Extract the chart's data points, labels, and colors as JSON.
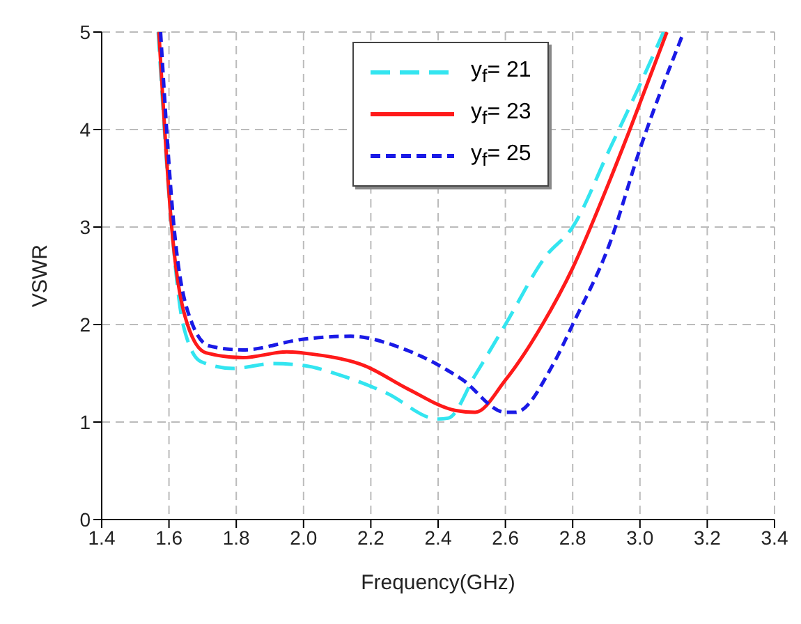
{
  "chart_data": {
    "type": "line",
    "xlabel": "Frequency(GHz)",
    "ylabel": "VSWR",
    "xlim": [
      1.4,
      3.4
    ],
    "ylim": [
      0,
      5
    ],
    "xticks": [
      {
        "value": 1.4,
        "label": "1.4"
      },
      {
        "value": 1.6,
        "label": "1.6"
      },
      {
        "value": 1.8,
        "label": "1.8"
      },
      {
        "value": 2.0,
        "label": "2.0"
      },
      {
        "value": 2.2,
        "label": "2.2"
      },
      {
        "value": 2.4,
        "label": "2.4"
      },
      {
        "value": 2.6,
        "label": "2.6"
      },
      {
        "value": 2.8,
        "label": "2.8"
      },
      {
        "value": 3.0,
        "label": "3.0"
      },
      {
        "value": 3.2,
        "label": "3.2"
      },
      {
        "value": 3.4,
        "label": "3.4"
      }
    ],
    "yticks": [
      0,
      1,
      2,
      3,
      4,
      5
    ],
    "grid": true,
    "legend": "top right",
    "marker": "none",
    "series": [
      {
        "name": "y$_{f}$= 21",
        "color": "#33e5f0",
        "line_style": "dashed",
        "x": [
          1.568,
          1.608,
          1.642,
          1.695,
          1.79,
          1.91,
          2.0,
          2.11,
          2.245,
          2.4,
          2.43,
          2.51,
          2.6,
          2.72,
          2.8,
          2.91,
          3.0,
          3.07
        ],
        "values": [
          5,
          3,
          2,
          1.62,
          1.55,
          1.6,
          1.58,
          1.48,
          1.3,
          1.03,
          1.04,
          1.48,
          2.0,
          2.7,
          3.0,
          3.8,
          4.46,
          5
        ]
      },
      {
        "name": "y$_{f}$= 23",
        "color": "#ff1a1a",
        "line_style": "solid",
        "x": [
          1.57,
          1.608,
          1.655,
          1.71,
          1.82,
          1.95,
          2.04,
          2.18,
          2.31,
          2.45,
          2.51,
          2.6,
          2.71,
          2.8,
          2.9,
          2.97,
          3.08
        ],
        "values": [
          5,
          3,
          2,
          1.71,
          1.66,
          1.72,
          1.69,
          1.58,
          1.34,
          1.12,
          1.1,
          1.43,
          2.0,
          2.58,
          3.39,
          4.0,
          5
        ]
      },
      {
        "name": "y$_{f}$= 25",
        "color": "#1a1ae6",
        "line_style": "dotted",
        "x": [
          1.575,
          1.615,
          1.67,
          1.72,
          1.82,
          2.0,
          2.14,
          2.29,
          2.47,
          2.6,
          2.63,
          2.74,
          2.8,
          2.91,
          3.0,
          3.13
        ],
        "values": [
          5,
          3,
          2,
          1.78,
          1.74,
          1.85,
          1.88,
          1.76,
          1.44,
          1.1,
          1.1,
          1.58,
          2.0,
          2.83,
          3.8,
          5
        ]
      }
    ]
  }
}
